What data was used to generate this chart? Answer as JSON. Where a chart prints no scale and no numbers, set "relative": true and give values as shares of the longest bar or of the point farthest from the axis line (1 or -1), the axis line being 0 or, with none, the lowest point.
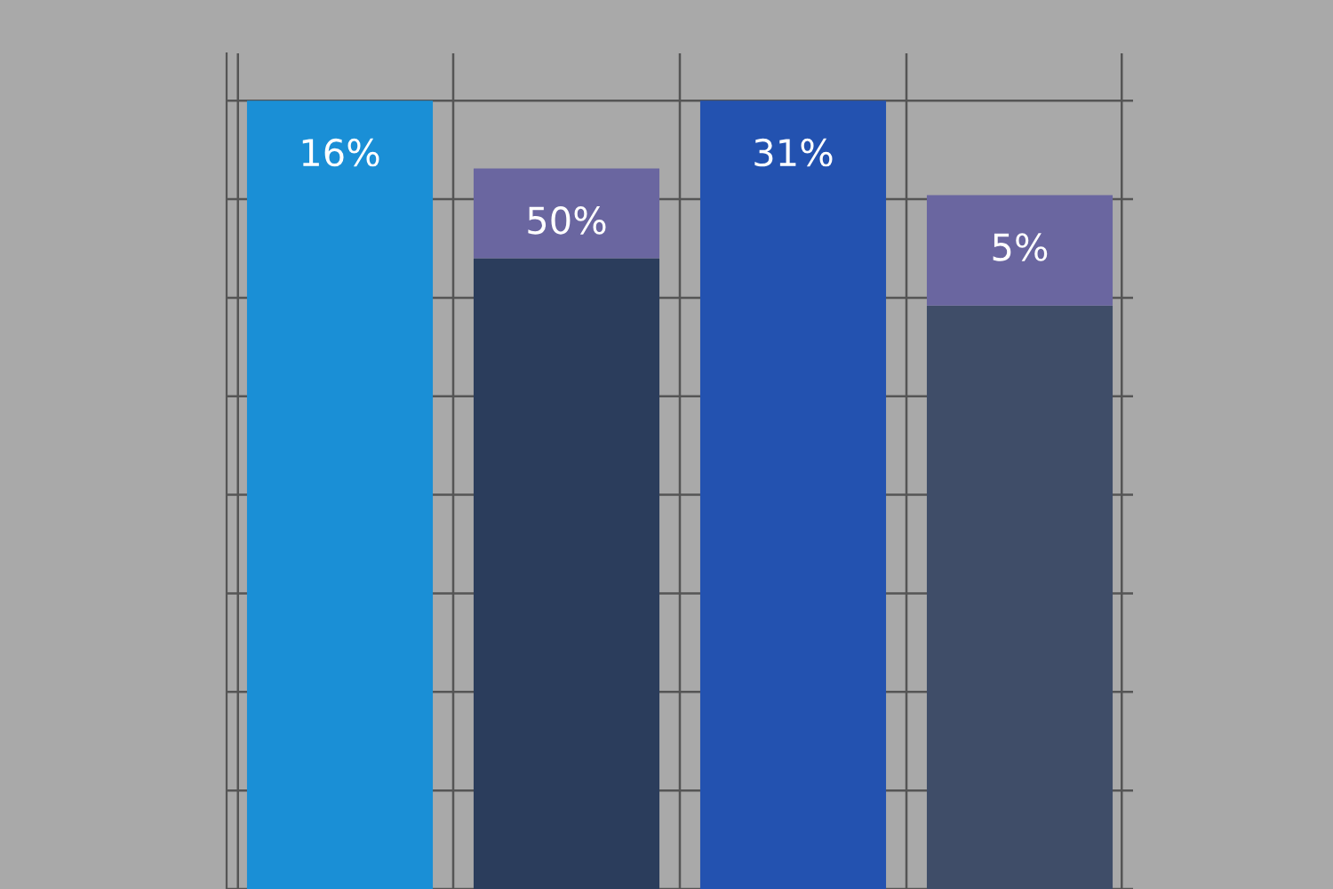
{
  "chart_data": {
    "type": "bar",
    "relative": true,
    "stacked": true,
    "grid": true,
    "categories": [
      null,
      null,
      null,
      null
    ],
    "annotations": [
      "16%",
      "50%",
      "31%",
      "5%"
    ],
    "series": [
      {
        "colors": [
          "#1a8fd6",
          "#2b3d5c",
          "#2352b0",
          "#3f4d68"
        ],
        "values": [
          1,
          0.8,
          1,
          0.74
        ]
      },
      {
        "colors": [
          "#6a66a0",
          "#6a66a0",
          "#6a66a0",
          "#6a66a0"
        ],
        "values": [
          null,
          0.114,
          null,
          0.14
        ]
      }
    ]
  }
}
